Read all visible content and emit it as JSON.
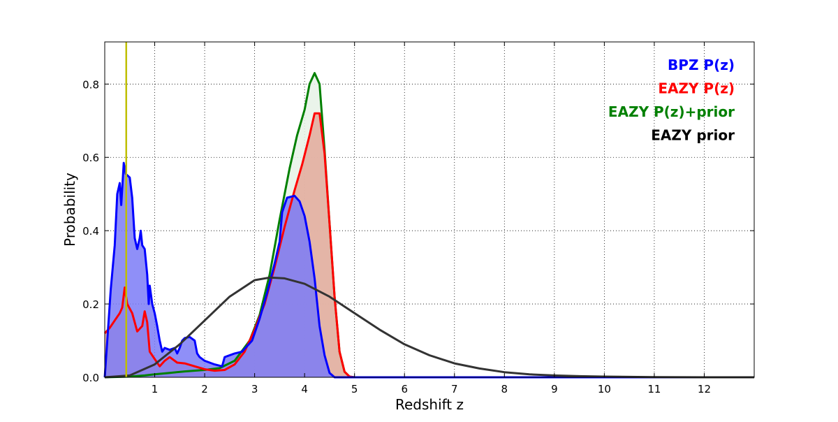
{
  "chart_data": {
    "type": "area",
    "xlabel": "Redshift z",
    "ylabel": "Probability",
    "xlim": [
      0,
      13
    ],
    "ylim": [
      0,
      0.915
    ],
    "xticks": [
      1,
      2,
      3,
      4,
      5,
      6,
      7,
      8,
      9,
      10,
      11,
      12
    ],
    "xtick_labels": [
      "1",
      "2",
      "3",
      "4",
      "5",
      "6",
      "7",
      "8",
      "9",
      "10",
      "11",
      "12"
    ],
    "yticks": [
      0.0,
      0.2,
      0.4,
      0.6,
      0.8
    ],
    "ytick_labels": [
      "0.0",
      "0.2",
      "0.4",
      "0.6",
      "0.8"
    ],
    "grid": true,
    "legend_position": "top-right",
    "vline": {
      "x": 0.43,
      "color": "#bfbf00"
    },
    "legend": [
      {
        "label": "BPZ P(z)",
        "color": "#0000ff"
      },
      {
        "label": "EAZY P(z)",
        "color": "#ff0000"
      },
      {
        "label": "EAZY P(z)+prior",
        "color": "#008000"
      },
      {
        "label": "EAZY prior",
        "color": "#000000"
      }
    ],
    "series": [
      {
        "name": "EAZY P(z)+prior",
        "color": "#008000",
        "fill": "#e6f2e6",
        "points": [
          [
            0,
            0
          ],
          [
            0.5,
            0.002
          ],
          [
            0.8,
            0.005
          ],
          [
            1.0,
            0.008
          ],
          [
            1.3,
            0.012
          ],
          [
            1.6,
            0.016
          ],
          [
            2.0,
            0.02
          ],
          [
            2.3,
            0.025
          ],
          [
            2.6,
            0.045
          ],
          [
            2.9,
            0.1
          ],
          [
            3.1,
            0.17
          ],
          [
            3.3,
            0.28
          ],
          [
            3.5,
            0.43
          ],
          [
            3.7,
            0.57
          ],
          [
            3.85,
            0.66
          ],
          [
            4.0,
            0.73
          ],
          [
            4.1,
            0.8
          ],
          [
            4.2,
            0.83
          ],
          [
            4.3,
            0.8
          ],
          [
            4.4,
            0.62
          ],
          [
            4.5,
            0.42
          ],
          [
            4.6,
            0.22
          ],
          [
            4.7,
            0.07
          ],
          [
            4.8,
            0.015
          ],
          [
            4.9,
            0.002
          ],
          [
            5.0,
            0
          ],
          [
            13,
            0
          ]
        ]
      },
      {
        "name": "EAZY P(z)",
        "color": "#ff0000",
        "fill": "#e3a99b",
        "points": [
          [
            0,
            0.12
          ],
          [
            0.1,
            0.135
          ],
          [
            0.2,
            0.155
          ],
          [
            0.3,
            0.175
          ],
          [
            0.35,
            0.19
          ],
          [
            0.4,
            0.245
          ],
          [
            0.45,
            0.2
          ],
          [
            0.55,
            0.175
          ],
          [
            0.65,
            0.125
          ],
          [
            0.75,
            0.14
          ],
          [
            0.8,
            0.18
          ],
          [
            0.85,
            0.15
          ],
          [
            0.9,
            0.07
          ],
          [
            1.0,
            0.05
          ],
          [
            1.1,
            0.03
          ],
          [
            1.2,
            0.045
          ],
          [
            1.3,
            0.055
          ],
          [
            1.45,
            0.04
          ],
          [
            1.6,
            0.038
          ],
          [
            1.8,
            0.03
          ],
          [
            2.0,
            0.022
          ],
          [
            2.2,
            0.018
          ],
          [
            2.4,
            0.02
          ],
          [
            2.6,
            0.035
          ],
          [
            2.8,
            0.07
          ],
          [
            3.0,
            0.13
          ],
          [
            3.2,
            0.2
          ],
          [
            3.4,
            0.3
          ],
          [
            3.6,
            0.41
          ],
          [
            3.8,
            0.51
          ],
          [
            3.95,
            0.58
          ],
          [
            4.1,
            0.66
          ],
          [
            4.2,
            0.72
          ],
          [
            4.3,
            0.72
          ],
          [
            4.4,
            0.61
          ],
          [
            4.5,
            0.42
          ],
          [
            4.6,
            0.22
          ],
          [
            4.7,
            0.07
          ],
          [
            4.8,
            0.015
          ],
          [
            4.9,
            0.002
          ],
          [
            5.0,
            0
          ],
          [
            13,
            0
          ]
        ]
      },
      {
        "name": "BPZ P(z)",
        "color": "#0000ff",
        "fill": "#7b7bf7",
        "points": [
          [
            0,
            0
          ],
          [
            0.05,
            0.1
          ],
          [
            0.12,
            0.24
          ],
          [
            0.2,
            0.36
          ],
          [
            0.25,
            0.5
          ],
          [
            0.3,
            0.53
          ],
          [
            0.33,
            0.47
          ],
          [
            0.38,
            0.585
          ],
          [
            0.42,
            0.555
          ],
          [
            0.5,
            0.545
          ],
          [
            0.55,
            0.49
          ],
          [
            0.6,
            0.38
          ],
          [
            0.65,
            0.35
          ],
          [
            0.7,
            0.38
          ],
          [
            0.72,
            0.4
          ],
          [
            0.75,
            0.36
          ],
          [
            0.8,
            0.35
          ],
          [
            0.85,
            0.28
          ],
          [
            0.88,
            0.2
          ],
          [
            0.9,
            0.25
          ],
          [
            0.95,
            0.2
          ],
          [
            1.0,
            0.175
          ],
          [
            1.05,
            0.14
          ],
          [
            1.1,
            0.1
          ],
          [
            1.15,
            0.07
          ],
          [
            1.2,
            0.08
          ],
          [
            1.3,
            0.075
          ],
          [
            1.4,
            0.08
          ],
          [
            1.45,
            0.065
          ],
          [
            1.5,
            0.08
          ],
          [
            1.55,
            0.1
          ],
          [
            1.6,
            0.107
          ],
          [
            1.7,
            0.11
          ],
          [
            1.8,
            0.1
          ],
          [
            1.85,
            0.065
          ],
          [
            1.9,
            0.055
          ],
          [
            2.0,
            0.045
          ],
          [
            2.2,
            0.035
          ],
          [
            2.35,
            0.03
          ],
          [
            2.4,
            0.055
          ],
          [
            2.6,
            0.065
          ],
          [
            2.75,
            0.07
          ],
          [
            2.85,
            0.085
          ],
          [
            2.95,
            0.1
          ],
          [
            3.1,
            0.16
          ],
          [
            3.25,
            0.23
          ],
          [
            3.4,
            0.31
          ],
          [
            3.5,
            0.37
          ],
          [
            3.55,
            0.45
          ],
          [
            3.65,
            0.49
          ],
          [
            3.8,
            0.495
          ],
          [
            3.9,
            0.48
          ],
          [
            4.0,
            0.44
          ],
          [
            4.1,
            0.37
          ],
          [
            4.2,
            0.27
          ],
          [
            4.3,
            0.14
          ],
          [
            4.4,
            0.06
          ],
          [
            4.5,
            0.012
          ],
          [
            4.6,
            0
          ],
          [
            13,
            0
          ]
        ]
      },
      {
        "name": "EAZY prior",
        "color": "#333333",
        "fill": "none",
        "points": [
          [
            0,
            0
          ],
          [
            0.5,
            0.005
          ],
          [
            1.0,
            0.035
          ],
          [
            1.5,
            0.09
          ],
          [
            2.0,
            0.155
          ],
          [
            2.5,
            0.22
          ],
          [
            3.0,
            0.265
          ],
          [
            3.3,
            0.272
          ],
          [
            3.6,
            0.27
          ],
          [
            4.0,
            0.255
          ],
          [
            4.5,
            0.22
          ],
          [
            5.0,
            0.175
          ],
          [
            5.5,
            0.13
          ],
          [
            6.0,
            0.09
          ],
          [
            6.5,
            0.06
          ],
          [
            7.0,
            0.038
          ],
          [
            7.5,
            0.024
          ],
          [
            8.0,
            0.014
          ],
          [
            8.5,
            0.008
          ],
          [
            9.0,
            0.005
          ],
          [
            9.5,
            0.003
          ],
          [
            10.0,
            0.002
          ],
          [
            11,
            0.0005
          ],
          [
            12,
            0
          ],
          [
            13,
            0
          ]
        ]
      }
    ]
  }
}
